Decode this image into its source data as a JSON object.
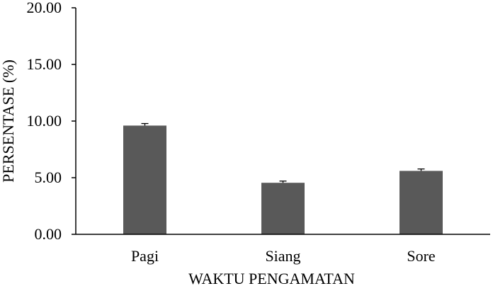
{
  "chart_data": {
    "type": "bar",
    "categories": [
      "Pagi",
      "Siang",
      "Sore"
    ],
    "values": [
      9.6,
      4.55,
      5.6
    ],
    "error": [
      0.18,
      0.15,
      0.17
    ],
    "xlabel": "WAKTU PENGAMATAN",
    "ylabel": "PERSENTASE (%)",
    "ylim": [
      0,
      20
    ],
    "yticks": [
      0,
      5,
      10,
      15,
      20
    ],
    "ytick_labels": [
      "0.00",
      "5.00",
      "10.00",
      "15.00",
      "20.00"
    ],
    "grid": false,
    "bar_color": "#595959",
    "axis_color": "#000000"
  }
}
